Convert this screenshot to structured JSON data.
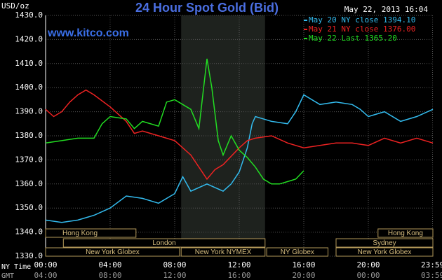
{
  "chart_data": {
    "type": "line",
    "title": "24 Hour Spot Gold (Bid)",
    "subtitle": "www.kitco.com",
    "timestamp": "May 22, 2013 16:04",
    "y_label": "USD/oz",
    "x_label": "NY Time",
    "x2_label": "GMT",
    "xlim": [
      0,
      24
    ],
    "xticks": [
      {
        "value": 0,
        "label": "00:00"
      },
      {
        "value": 4,
        "label": "04:00"
      },
      {
        "value": 8,
        "label": "08:00"
      },
      {
        "value": 12,
        "label": "12:00"
      },
      {
        "value": 16,
        "label": "16:00"
      },
      {
        "value": 20,
        "label": "20:00"
      },
      {
        "value": 23.98,
        "label": "23:59"
      }
    ],
    "x2ticks": [
      {
        "value": 0,
        "label": "04:00"
      },
      {
        "value": 4,
        "label": "08:00"
      },
      {
        "value": 8,
        "label": "12:00"
      },
      {
        "value": 12,
        "label": "16:00"
      },
      {
        "value": 16,
        "label": "20:00"
      },
      {
        "value": 20,
        "label": "00:00"
      },
      {
        "value": 23.98,
        "label": "03:59"
      }
    ],
    "ylim": [
      1330,
      1430
    ],
    "yticks": [
      {
        "value": 1330,
        "label": "1330.0"
      },
      {
        "value": 1340,
        "label": "1340.0"
      },
      {
        "value": 1350,
        "label": "1350.0"
      },
      {
        "value": 1360,
        "label": "1360.0"
      },
      {
        "value": 1370,
        "label": "1370.0"
      },
      {
        "value": 1380,
        "label": "1380.0"
      },
      {
        "value": 1390,
        "label": "1390.0"
      },
      {
        "value": 1400,
        "label": "1400.0"
      },
      {
        "value": 1410,
        "label": "1410.0"
      },
      {
        "value": 1420,
        "label": "1420.0"
      },
      {
        "value": 1430,
        "label": "1430.0"
      }
    ],
    "grid": true,
    "shaded_x": [
      8.4,
      13.6
    ],
    "series": [
      {
        "name": "May 20 NY close 1394.10",
        "color": "#33bbee",
        "x": [
          0,
          1,
          2,
          3,
          4,
          5,
          6,
          7,
          8,
          8.5,
          9,
          10,
          11,
          11.5,
          12,
          12.5,
          12.8,
          13,
          14,
          15,
          15.5,
          16,
          17,
          18,
          19,
          19.5,
          20,
          21,
          22,
          23,
          24
        ],
        "values": [
          1345,
          1344,
          1345,
          1347,
          1350,
          1355,
          1354,
          1352,
          1356,
          1363,
          1357,
          1360,
          1357,
          1360,
          1365,
          1375,
          1385,
          1388,
          1386,
          1385,
          1390,
          1397,
          1393,
          1394,
          1393,
          1391,
          1388,
          1390,
          1386,
          1388,
          1391
        ]
      },
      {
        "name": "May 21 NY close 1376.00",
        "color": "#ee2222",
        "x": [
          0,
          0.5,
          1,
          1.5,
          2,
          2.5,
          3,
          4,
          5,
          5.5,
          6,
          7,
          8,
          9,
          10,
          10.5,
          11,
          12,
          12.5,
          13,
          14,
          15,
          16,
          17,
          18,
          19,
          20,
          21,
          22,
          23,
          24
        ],
        "values": [
          1391,
          1388,
          1390,
          1394,
          1397,
          1399,
          1397,
          1392,
          1386,
          1381,
          1382,
          1380,
          1378,
          1372,
          1362,
          1366,
          1368,
          1375,
          1378,
          1379,
          1380,
          1377,
          1375,
          1376,
          1377,
          1377,
          1376,
          1379,
          1377,
          1379,
          1377
        ]
      },
      {
        "name": "May 22 Last 1365.20",
        "color": "#22dd22",
        "x": [
          0,
          1,
          2,
          3,
          3.5,
          4,
          5,
          5.5,
          6,
          7,
          7.5,
          8,
          8.5,
          9,
          9.5,
          10,
          10.3,
          10.7,
          11,
          11.5,
          12,
          12.5,
          13,
          13.5,
          14,
          14.5,
          15,
          15.5,
          16
        ],
        "values": [
          1377,
          1378,
          1379,
          1379,
          1385,
          1388,
          1387,
          1383,
          1386,
          1384,
          1394,
          1395,
          1393,
          1391,
          1383,
          1412,
          1400,
          1378,
          1372,
          1380,
          1374,
          1371,
          1367,
          1362,
          1360,
          1360,
          1361,
          1362,
          1365.5
        ]
      }
    ],
    "sessions": [
      {
        "label": "Hong Kong",
        "row": 1,
        "start": 0,
        "end": 5.6
      },
      {
        "label": "Hong Kong",
        "row": 1,
        "start": 20.6,
        "end": 24
      },
      {
        "label": "London",
        "row": 2,
        "start": 1.1,
        "end": 13.6
      },
      {
        "label": "Sydney",
        "row": 2,
        "start": 18,
        "end": 24
      },
      {
        "label": "New York Globex",
        "row": 3,
        "start": 0,
        "end": 8.3
      },
      {
        "label": "New York NYMEX",
        "row": 3,
        "start": 8.4,
        "end": 13.6
      },
      {
        "label": "NY Globex",
        "row": 3,
        "start": 13.7,
        "end": 17.5
      },
      {
        "label": "New York Globex",
        "row": 3,
        "start": 18,
        "end": 24
      }
    ]
  }
}
